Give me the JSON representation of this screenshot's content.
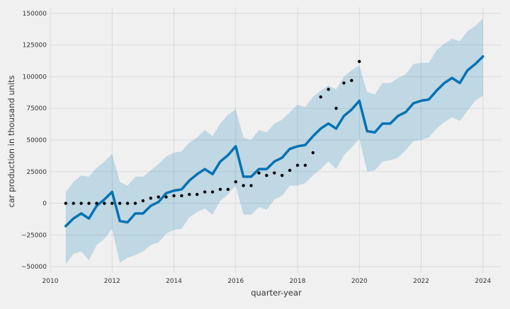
{
  "chart_data": {
    "type": "line",
    "title": "",
    "xlabel": "quarter-year",
    "ylabel": "car production in thousand units",
    "xlim": [
      2010.0,
      2024.6
    ],
    "ylim": [
      -55000,
      155000
    ],
    "x_ticks": [
      2010,
      2012,
      2014,
      2016,
      2018,
      2020,
      2022,
      2024
    ],
    "y_ticks": [
      -50000,
      -25000,
      0,
      25000,
      50000,
      75000,
      100000,
      125000,
      150000
    ],
    "grid": true,
    "legend": "none",
    "colors": {
      "background": "#f0f0f0",
      "grid": "#d5d5d5",
      "forecast_line": "#0072b2",
      "interval_fill": "#0072b2",
      "observed_points": "#000000"
    },
    "series": [
      {
        "kind": "scatter",
        "x": [
          2010.5,
          2010.75,
          2011.0,
          2011.25,
          2011.5,
          2011.75,
          2012.0,
          2012.25,
          2012.5,
          2012.75,
          2013.0,
          2013.25,
          2013.5,
          2013.75,
          2014.0,
          2014.25,
          2014.5,
          2014.75,
          2015.0,
          2015.25,
          2015.5,
          2015.75,
          2016.0,
          2016.25,
          2016.5,
          2016.75,
          2017.0,
          2017.25,
          2017.5,
          2017.75,
          2018.0,
          2018.25,
          2018.5,
          2018.75,
          2019.0,
          2019.25,
          2019.5,
          2019.75,
          2020.0
        ],
        "y": [
          0,
          0,
          0,
          0,
          0,
          0,
          0,
          0,
          0,
          0,
          2000,
          4000,
          5000,
          5000,
          6000,
          6000,
          7000,
          7000,
          9000,
          9000,
          11000,
          11000,
          17000,
          14000,
          14000,
          24000,
          22000,
          24000,
          22000,
          26000,
          30000,
          30000,
          40000,
          84000,
          90000,
          75000,
          95000,
          97000,
          112000
        ]
      },
      {
        "kind": "line",
        "x": [
          2010.5,
          2010.75,
          2011.0,
          2011.25,
          2011.5,
          2011.75,
          2012.0,
          2012.25,
          2012.5,
          2012.75,
          2013.0,
          2013.25,
          2013.5,
          2013.75,
          2014.0,
          2014.25,
          2014.5,
          2014.75,
          2015.0,
          2015.25,
          2015.5,
          2015.75,
          2016.0,
          2016.25,
          2016.5,
          2016.75,
          2017.0,
          2017.25,
          2017.5,
          2017.75,
          2018.0,
          2018.25,
          2018.5,
          2018.75,
          2019.0,
          2019.25,
          2019.5,
          2019.75,
          2020.0,
          2020.25,
          2020.5,
          2020.75,
          2021.0,
          2021.25,
          2021.5,
          2021.75,
          2022.0,
          2022.25,
          2022.5,
          2022.75,
          2023.0,
          2023.25,
          2023.5,
          2023.75,
          2024.0
        ],
        "y": [
          -18000,
          -12000,
          -8000,
          -12000,
          -2000,
          3000,
          9000,
          -14000,
          -15000,
          -8000,
          -8000,
          -2000,
          1000,
          8000,
          10000,
          11000,
          18000,
          23000,
          27000,
          23000,
          33000,
          38000,
          45000,
          21000,
          21000,
          27000,
          27000,
          33000,
          36000,
          43000,
          45000,
          46000,
          53000,
          59000,
          63000,
          59000,
          69000,
          74000,
          81000,
          57000,
          56000,
          63000,
          63000,
          69000,
          72000,
          79000,
          81000,
          82000,
          89000,
          95000,
          99000,
          95000,
          105000,
          110000,
          116000
        ],
        "y_lower": [
          -48000,
          -40000,
          -38000,
          -45000,
          -33000,
          -28000,
          -20000,
          -47000,
          -43000,
          -41000,
          -38000,
          -33000,
          -31000,
          -24000,
          -21000,
          -20000,
          -11000,
          -7000,
          -4000,
          -9000,
          2000,
          7000,
          14000,
          -9000,
          -9000,
          -3000,
          -5000,
          3000,
          6000,
          14000,
          14000,
          16000,
          22000,
          27000,
          33000,
          27000,
          38000,
          44000,
          51000,
          25000,
          26000,
          33000,
          34000,
          36000,
          42000,
          49000,
          50000,
          52000,
          59000,
          64000,
          68000,
          65000,
          73000,
          81000,
          85000
        ],
        "y_upper": [
          9000,
          17000,
          22000,
          21000,
          28000,
          33000,
          39000,
          17000,
          14000,
          21000,
          21000,
          26000,
          31000,
          37000,
          40000,
          41000,
          48000,
          52000,
          58000,
          53000,
          63000,
          70000,
          74000,
          52000,
          50000,
          58000,
          56000,
          63000,
          66000,
          72000,
          78000,
          76000,
          84000,
          89000,
          93000,
          90000,
          100000,
          105000,
          109000,
          88000,
          86000,
          95000,
          95000,
          99000,
          102000,
          110000,
          111000,
          111000,
          121000,
          126000,
          130000,
          128000,
          136000,
          140000,
          146000
        ]
      }
    ]
  }
}
